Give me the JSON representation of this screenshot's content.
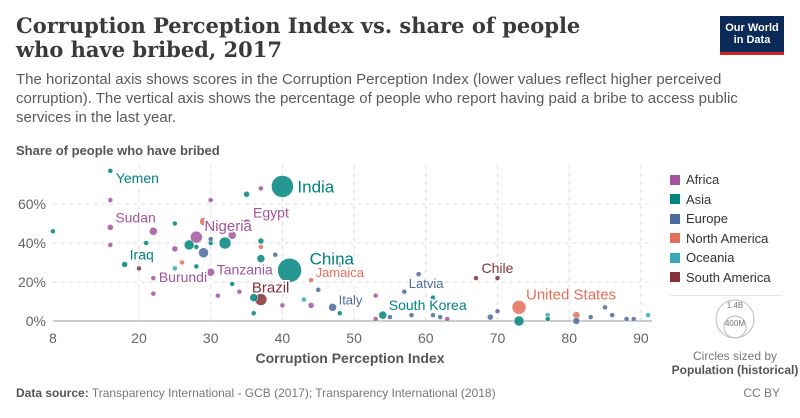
{
  "header": {
    "title": "Corruption Perception Index vs. share of people who have bribed, 2017",
    "subtitle": "The horizontal axis shows scores in the Corruption Perception Index (lower values reflect higher perceived corruption). The vertical axis shows the percentage of people who report having paid a bribe to access public services in the last year.",
    "logo_line1": "Our World",
    "logo_line2": "in Data"
  },
  "footer": {
    "source_label": "Data source:",
    "source_text": "Transparency International - GCB (2017); Transparency International (2018)",
    "license": "CC BY"
  },
  "size_legend": {
    "max_label": "1.4B",
    "min_label": "400M",
    "caption": "Circles sized by",
    "variable": "Population (historical)"
  },
  "colors": {
    "Africa": "#a2559c",
    "Asia": "#00847e",
    "Europe": "#4c6a9c",
    "North America": "#e56e5a",
    "Oceania": "#38aaba",
    "South America": "#883039"
  },
  "chart_data": {
    "type": "scatter",
    "title": "Corruption Perception Index vs. share of people who have bribed, 2017",
    "xlabel": "Corruption Perception Index",
    "ylabel": "Share of people who have bribed",
    "xlim": [
      8,
      91
    ],
    "ylim": [
      0,
      70
    ],
    "xticks": [
      8,
      20,
      30,
      40,
      50,
      60,
      70,
      80,
      90
    ],
    "yticks": [
      0,
      20,
      40,
      60
    ],
    "ytick_labels": [
      "0%",
      "20%",
      "40%",
      "60%"
    ],
    "grid": true,
    "legend": [
      "Africa",
      "Asia",
      "Europe",
      "North America",
      "Oceania",
      "South America"
    ],
    "legend_position": "right",
    "points": [
      {
        "name": "India",
        "x": 40,
        "y": 69,
        "r": 11,
        "region": "Asia",
        "label": true
      },
      {
        "name": "China",
        "x": 41,
        "y": 26,
        "r": 12,
        "region": "Asia",
        "label": true
      },
      {
        "name": "Yemen",
        "x": 16,
        "y": 77,
        "r": 2.5,
        "region": "Asia",
        "label": true
      },
      {
        "name": "Sudan",
        "x": 16,
        "y": 48,
        "r": 3,
        "region": "Africa",
        "label": true
      },
      {
        "name": "Iraq",
        "x": 18,
        "y": 29,
        "r": 3,
        "region": "Asia",
        "label": true
      },
      {
        "name": "Burundi",
        "x": 22,
        "y": 22,
        "r": 2.5,
        "region": "Africa",
        "label": true
      },
      {
        "name": "Nigeria",
        "x": 28,
        "y": 43,
        "r": 6,
        "region": "Africa",
        "label": true
      },
      {
        "name": "Egypt",
        "x": 35,
        "y": 50,
        "r": 4.5,
        "region": "Africa",
        "label": true
      },
      {
        "name": "Tanzania",
        "x": 30,
        "y": 25,
        "r": 4,
        "region": "Africa",
        "label": true
      },
      {
        "name": "Brazil",
        "x": 37,
        "y": 11,
        "r": 6,
        "region": "South America",
        "label": true
      },
      {
        "name": "Jamaica",
        "x": 44,
        "y": 21,
        "r": 2.5,
        "region": "North America",
        "label": true
      },
      {
        "name": "Italy",
        "x": 47,
        "y": 7,
        "r": 4,
        "region": "Europe",
        "label": true
      },
      {
        "name": "Latvia",
        "x": 57,
        "y": 15,
        "r": 2.5,
        "region": "Europe",
        "label": true
      },
      {
        "name": "South Korea",
        "x": 54,
        "y": 3,
        "r": 4,
        "region": "Asia",
        "label": true
      },
      {
        "name": "Chile",
        "x": 67,
        "y": 22,
        "r": 2.5,
        "region": "South America",
        "label": true
      },
      {
        "name": "United States",
        "x": 73,
        "y": 7,
        "r": 7,
        "region": "North America",
        "label": true
      },
      {
        "name": "",
        "x": 8,
        "y": 46,
        "r": 2.5,
        "region": "Asia"
      },
      {
        "name": "",
        "x": 16,
        "y": 62,
        "r": 2.5,
        "region": "Africa"
      },
      {
        "name": "",
        "x": 16,
        "y": 39,
        "r": 2.5,
        "region": "Africa"
      },
      {
        "name": "",
        "x": 20,
        "y": 27,
        "r": 2.5,
        "region": "South America"
      },
      {
        "name": "",
        "x": 21,
        "y": 40,
        "r": 2.5,
        "region": "Asia"
      },
      {
        "name": "",
        "x": 22,
        "y": 14,
        "r": 2.5,
        "region": "Africa"
      },
      {
        "name": "",
        "x": 22,
        "y": 46,
        "r": 4,
        "region": "Africa"
      },
      {
        "name": "",
        "x": 25,
        "y": 50,
        "r": 2.5,
        "region": "Asia"
      },
      {
        "name": "",
        "x": 25,
        "y": 37,
        "r": 3,
        "region": "Africa"
      },
      {
        "name": "",
        "x": 25,
        "y": 27,
        "r": 2.5,
        "region": "Oceania"
      },
      {
        "name": "",
        "x": 26,
        "y": 30,
        "r": 2.5,
        "region": "North America"
      },
      {
        "name": "",
        "x": 27,
        "y": 39,
        "r": 5,
        "region": "Asia"
      },
      {
        "name": "",
        "x": 28,
        "y": 38,
        "r": 2.5,
        "region": "Asia"
      },
      {
        "name": "",
        "x": 28,
        "y": 28,
        "r": 2.5,
        "region": "Asia"
      },
      {
        "name": "",
        "x": 29,
        "y": 35,
        "r": 5,
        "region": "Europe"
      },
      {
        "name": "",
        "x": 29,
        "y": 51,
        "r": 4,
        "region": "North America"
      },
      {
        "name": "",
        "x": 29,
        "y": 23,
        "r": 2.5,
        "region": "South America"
      },
      {
        "name": "",
        "x": 30,
        "y": 62,
        "r": 2.5,
        "region": "Africa"
      },
      {
        "name": "",
        "x": 30,
        "y": 40,
        "r": 2.5,
        "region": "Asia"
      },
      {
        "name": "",
        "x": 30,
        "y": 42,
        "r": 2.5,
        "region": "Europe"
      },
      {
        "name": "",
        "x": 32,
        "y": 40,
        "r": 6,
        "region": "Asia"
      },
      {
        "name": "",
        "x": 33,
        "y": 44,
        "r": 4,
        "region": "Africa"
      },
      {
        "name": "",
        "x": 31,
        "y": 13,
        "r": 2.5,
        "region": "Africa"
      },
      {
        "name": "",
        "x": 33,
        "y": 19,
        "r": 2.5,
        "region": "Asia"
      },
      {
        "name": "",
        "x": 35,
        "y": 65,
        "r": 3,
        "region": "Asia"
      },
      {
        "name": "",
        "x": 37,
        "y": 68,
        "r": 2.5,
        "region": "Africa"
      },
      {
        "name": "",
        "x": 37,
        "y": 41,
        "r": 3,
        "region": "Asia"
      },
      {
        "name": "",
        "x": 37,
        "y": 38,
        "r": 2.5,
        "region": "North America"
      },
      {
        "name": "",
        "x": 37,
        "y": 32,
        "r": 4,
        "region": "Asia"
      },
      {
        "name": "",
        "x": 36,
        "y": 16,
        "r": 2.5,
        "region": "Asia"
      },
      {
        "name": "",
        "x": 36,
        "y": 12,
        "r": 4,
        "region": "Asia"
      },
      {
        "name": "",
        "x": 36,
        "y": 4,
        "r": 2.5,
        "region": "Asia"
      },
      {
        "name": "",
        "x": 34,
        "y": 15,
        "r": 2.5,
        "region": "Africa"
      },
      {
        "name": "",
        "x": 39,
        "y": 34,
        "r": 2.5,
        "region": "Europe"
      },
      {
        "name": "",
        "x": 40,
        "y": 8,
        "r": 2.5,
        "region": "Africa"
      },
      {
        "name": "",
        "x": 43,
        "y": 11,
        "r": 2.5,
        "region": "Oceania"
      },
      {
        "name": "",
        "x": 44,
        "y": 8,
        "r": 3,
        "region": "Africa"
      },
      {
        "name": "",
        "x": 45,
        "y": 16,
        "r": 2.5,
        "region": "Europe"
      },
      {
        "name": "",
        "x": 48,
        "y": 29,
        "r": 2.5,
        "region": "Europe"
      },
      {
        "name": "",
        "x": 48,
        "y": 4,
        "r": 2.5,
        "region": "Asia"
      },
      {
        "name": "",
        "x": 53,
        "y": 13,
        "r": 2.5,
        "region": "Africa"
      },
      {
        "name": "",
        "x": 53,
        "y": 1,
        "r": 2.5,
        "region": "Africa"
      },
      {
        "name": "",
        "x": 55,
        "y": 2,
        "r": 2.5,
        "region": "Europe"
      },
      {
        "name": "",
        "x": 58,
        "y": 3,
        "r": 2.5,
        "region": "Europe"
      },
      {
        "name": "",
        "x": 59,
        "y": 24,
        "r": 2.5,
        "region": "Europe"
      },
      {
        "name": "",
        "x": 61,
        "y": 12,
        "r": 2.5,
        "region": "Asia"
      },
      {
        "name": "",
        "x": 61,
        "y": 3,
        "r": 2.5,
        "region": "Europe"
      },
      {
        "name": "",
        "x": 62,
        "y": 2,
        "r": 2.5,
        "region": "Europe"
      },
      {
        "name": "",
        "x": 63,
        "y": 1,
        "r": 2.5,
        "region": "Africa"
      },
      {
        "name": "",
        "x": 69,
        "y": 2,
        "r": 3,
        "region": "Europe"
      },
      {
        "name": "",
        "x": 70,
        "y": 5,
        "r": 2.5,
        "region": "Europe"
      },
      {
        "name": "",
        "x": 70,
        "y": 22,
        "r": 2.5,
        "region": "South America"
      },
      {
        "name": "",
        "x": 73,
        "y": 0,
        "r": 5,
        "region": "Asia"
      },
      {
        "name": "",
        "x": 77,
        "y": 3,
        "r": 2.5,
        "region": "Oceania"
      },
      {
        "name": "",
        "x": 77,
        "y": 1,
        "r": 2.5,
        "region": "Asia"
      },
      {
        "name": "",
        "x": 81,
        "y": 3,
        "r": 3.5,
        "region": "North America"
      },
      {
        "name": "",
        "x": 81,
        "y": 0,
        "r": 3.5,
        "region": "Europe"
      },
      {
        "name": "",
        "x": 83,
        "y": 2,
        "r": 2.5,
        "region": "Europe"
      },
      {
        "name": "",
        "x": 85,
        "y": 7,
        "r": 2.5,
        "region": "Europe"
      },
      {
        "name": "",
        "x": 86,
        "y": 3,
        "r": 2.5,
        "region": "Europe"
      },
      {
        "name": "",
        "x": 88,
        "y": 1,
        "r": 2.5,
        "region": "Europe"
      },
      {
        "name": "",
        "x": 89,
        "y": 1,
        "r": 2.5,
        "region": "Europe"
      },
      {
        "name": "",
        "x": 91,
        "y": 3,
        "r": 2.5,
        "region": "Oceania"
      }
    ]
  }
}
